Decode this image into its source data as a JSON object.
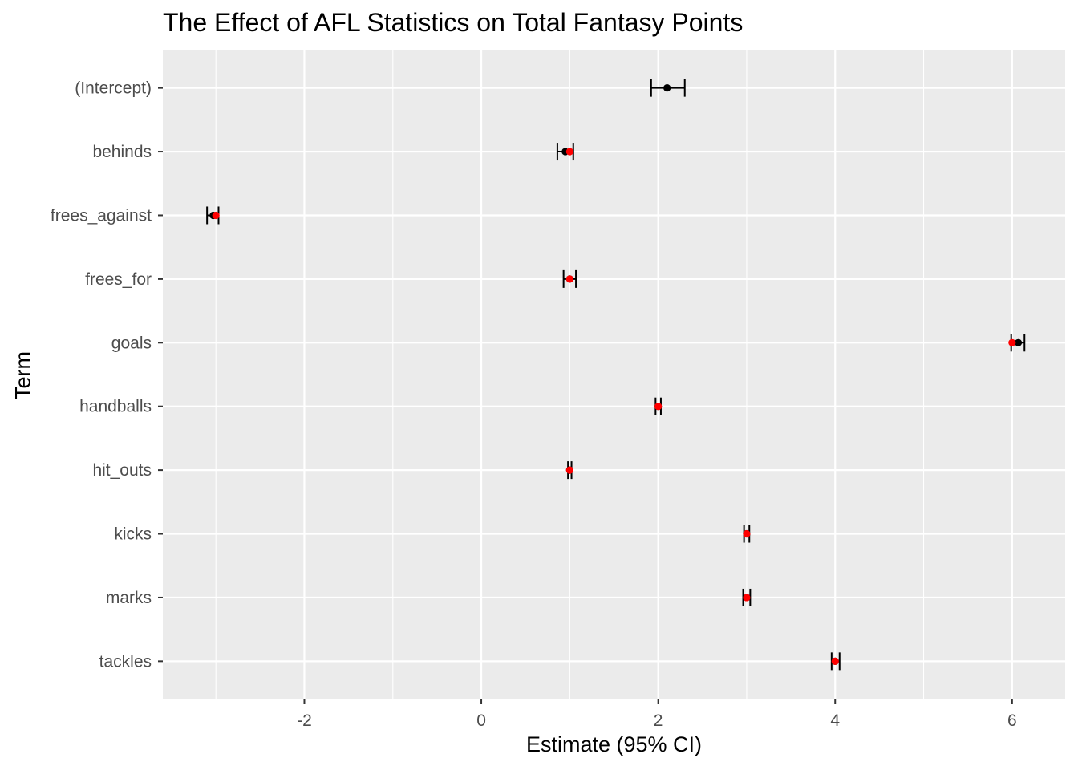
{
  "chart_data": {
    "type": "scatter",
    "title": "The Effect of AFL Statistics on Total Fantasy Points",
    "xlabel": "Estimate (95% CI)",
    "ylabel": "Term",
    "xlim": [
      -3.6,
      6.6
    ],
    "x_ticks": [
      -2,
      0,
      2,
      4,
      6
    ],
    "x_tick_labels": [
      "-2",
      "0",
      "2",
      "4",
      "6"
    ],
    "grid": true,
    "terms": [
      "(Intercept)",
      "behinds",
      "frees_against",
      "frees_for",
      "goals",
      "handballs",
      "hit_outs",
      "kicks",
      "marks",
      "tackles"
    ],
    "series": [
      {
        "role": "estimate-with-95-ci",
        "color": "#000000",
        "estimates": [
          2.1,
          0.95,
          -3.03,
          1.0,
          6.07,
          2.0,
          1.0,
          3.0,
          3.0,
          4.0
        ],
        "ci_low": [
          1.92,
          0.86,
          -3.1,
          0.93,
          5.99,
          1.97,
          0.98,
          2.97,
          2.96,
          3.96
        ],
        "ci_high": [
          2.3,
          1.04,
          -2.97,
          1.07,
          6.14,
          2.03,
          1.02,
          3.03,
          3.04,
          4.05
        ]
      },
      {
        "role": "true-value",
        "color": "#ff0000",
        "values": [
          null,
          1,
          -3,
          1,
          6,
          2,
          1,
          3,
          3,
          4
        ]
      }
    ]
  }
}
